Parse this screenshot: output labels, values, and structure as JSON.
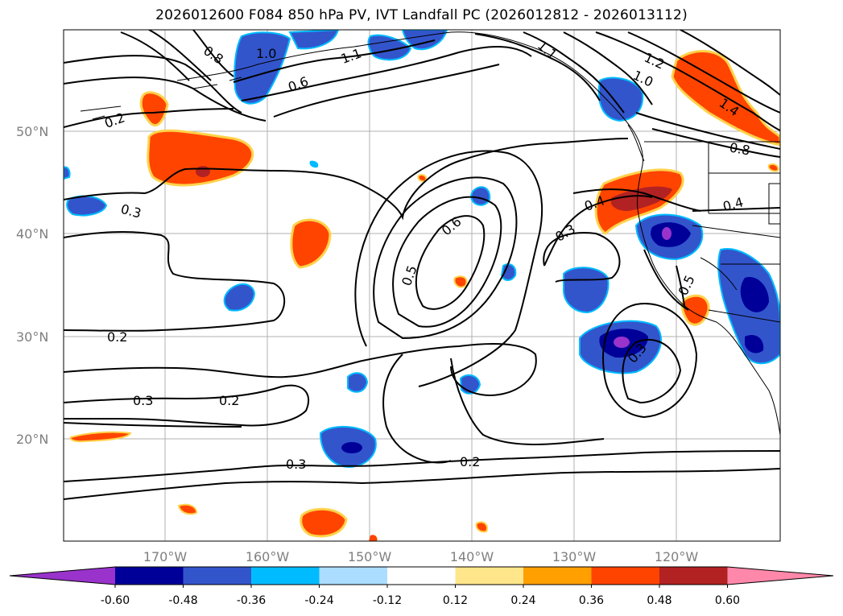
{
  "title": "2026012600 F084 850 hPa PV, IVT Landfall PC (2026012812 - 2026013112)",
  "lat_labels": [
    "50°N",
    "40°N",
    "30°N",
    "20°N"
  ],
  "lon_labels": [
    "170°W",
    "160°W",
    "150°W",
    "140°W",
    "130°W",
    "120°W"
  ],
  "colorbar": {
    "ticks": [
      "-0.60",
      "-0.48",
      "-0.36",
      "-0.24",
      "-0.12",
      "0.12",
      "0.24",
      "0.36",
      "0.48",
      "0.60"
    ],
    "colors": [
      "#9933cc",
      "#000099",
      "#3355cc",
      "#00bbff",
      "#aaddff",
      "#ffffff",
      "#ffe68a",
      "#ffa000",
      "#ff4400",
      "#b22222",
      "#ff88aa"
    ]
  },
  "contour_labels": [
    "0.8",
    "1.0",
    "1.1",
    "0.6",
    "0.2",
    "1.1",
    "1.2",
    "1.0",
    "1.4",
    "0.8",
    "0.3",
    "0.6",
    "0.5",
    "0.4",
    "0.3",
    "0.4",
    "0.5",
    "0.2",
    "0.3",
    "0.2",
    "0.3",
    "0.2",
    "0.3"
  ]
}
